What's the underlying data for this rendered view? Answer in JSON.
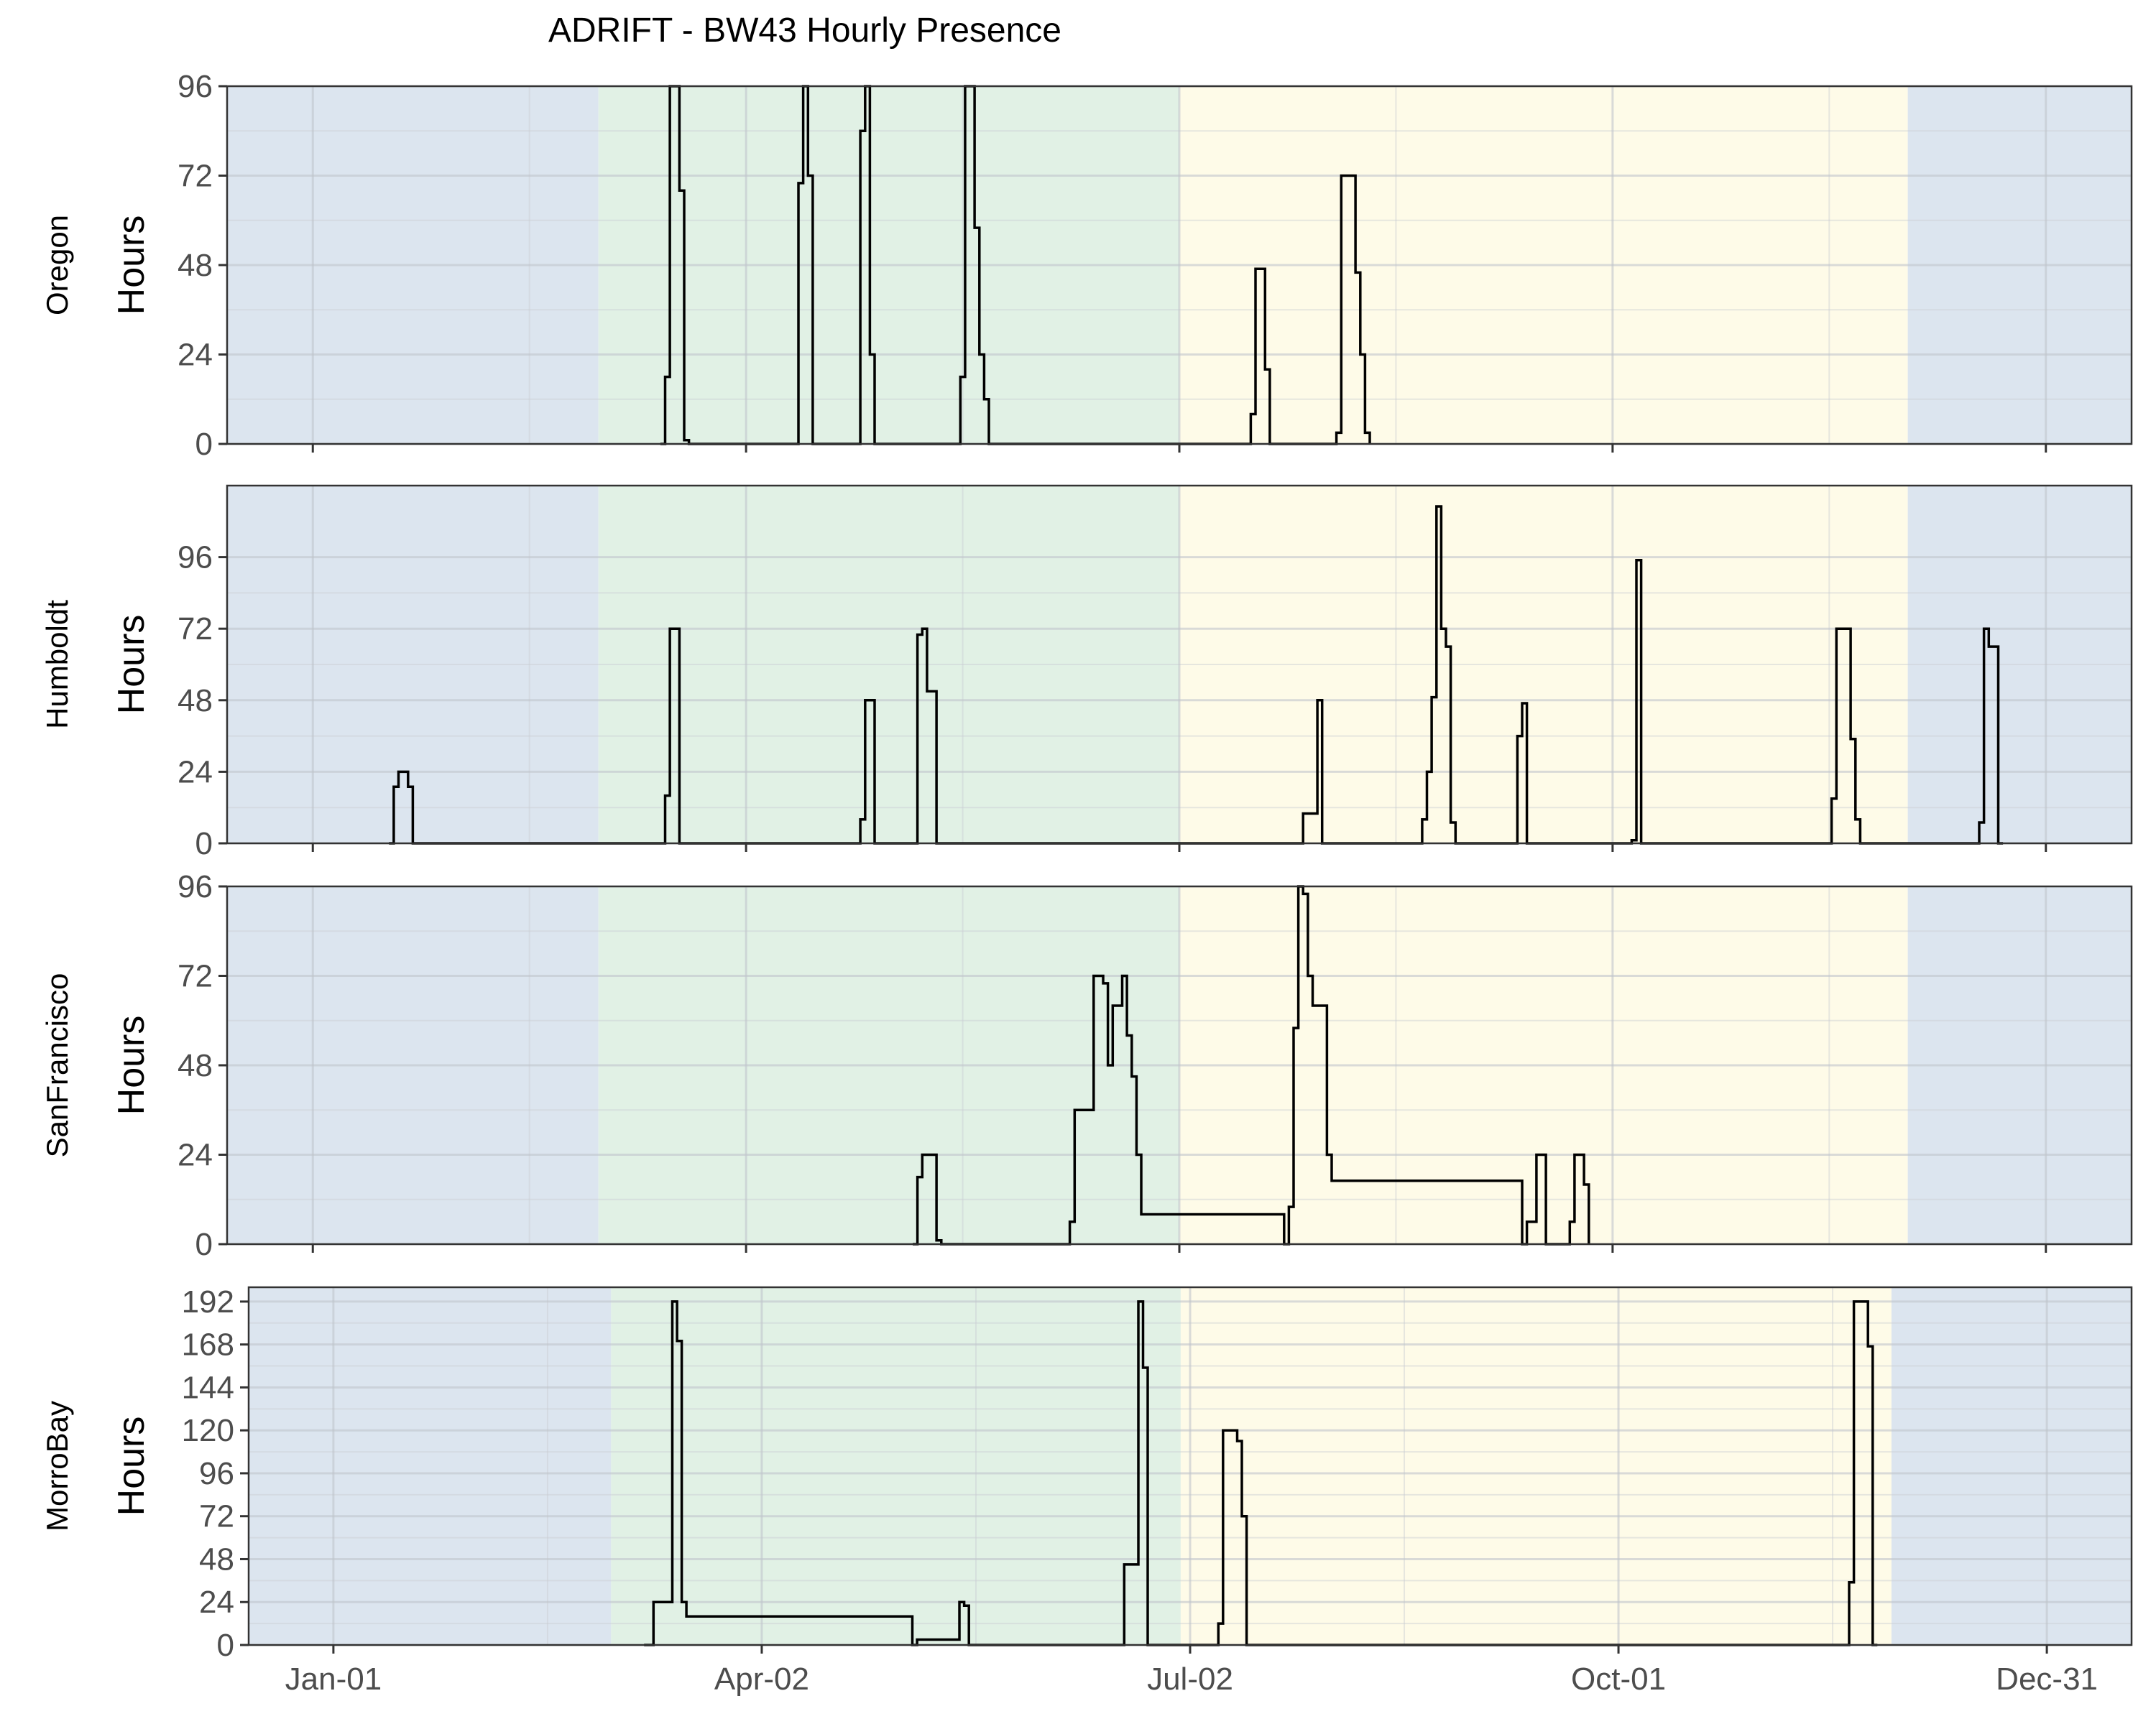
{
  "title": "ADRIFT - BW43 Hourly Presence",
  "colors": {
    "winter": "#dce5ef",
    "upwelling": "#e1f1e5",
    "postupwelling": "#fefbe8",
    "line": "#000000",
    "grid": "#ffffff"
  },
  "chart_data": {
    "type": "step-line",
    "title": "ADRIFT - BW43 Hourly Presence",
    "x_tick_labels": [
      "Jan-01",
      "Apr-02",
      "Jul-02",
      "Oct-01",
      "Dec-31"
    ],
    "x_tick_days": [
      0,
      91,
      182,
      273,
      364
    ],
    "xlim_days": [
      -18,
      382
    ],
    "ylabel": "Hours",
    "panels": [
      {
        "strip": "Oregon",
        "ylim": [
          0,
          96
        ],
        "yticks": [
          0,
          24,
          48,
          72,
          96
        ],
        "seasons": [
          {
            "name": "winter",
            "start": -18,
            "end": 60
          },
          {
            "name": "upwelling",
            "start": 60,
            "end": 182
          },
          {
            "name": "postupwelling",
            "start": 182,
            "end": 335
          },
          {
            "name": "winter",
            "start": 335,
            "end": 382
          }
        ],
        "x_week_start_day": [
          73,
          74,
          75,
          77,
          78,
          79,
          101,
          102,
          103,
          104,
          105,
          114,
          115,
          116,
          117,
          118,
          135,
          136,
          137,
          139,
          140,
          141,
          142,
          196,
          197,
          198,
          200,
          201,
          214,
          215,
          216,
          219,
          220,
          221,
          222
        ],
        "values": [
          0,
          18,
          96,
          68,
          1,
          0,
          0,
          70,
          96,
          72,
          0,
          0,
          84,
          96,
          24,
          0,
          0,
          18,
          96,
          58,
          24,
          12,
          0,
          0,
          8,
          47,
          20,
          0,
          0,
          3,
          72,
          46,
          24,
          3,
          0
        ]
      },
      {
        "strip": "Humboldt",
        "ylim": [
          0,
          120
        ],
        "yticks": [
          0,
          24,
          48,
          72,
          96
        ],
        "seasons": [
          {
            "name": "winter",
            "start": -18,
            "end": 60
          },
          {
            "name": "upwelling",
            "start": 60,
            "end": 182
          },
          {
            "name": "postupwelling",
            "start": 182,
            "end": 335
          },
          {
            "name": "winter",
            "start": 335,
            "end": 382
          }
        ],
        "x_week_start_day": [
          16,
          17,
          18,
          20,
          21,
          73,
          74,
          75,
          77,
          114,
          115,
          116,
          118,
          126,
          127,
          128,
          129,
          131,
          207,
          208,
          211,
          212,
          232,
          233,
          234,
          235,
          236,
          237,
          238,
          239,
          240,
          252,
          253,
          254,
          255,
          276,
          277,
          278,
          279,
          318,
          319,
          320,
          323,
          324,
          325,
          326,
          350,
          351,
          352,
          354,
          355
        ],
        "values": [
          0,
          19,
          24,
          19,
          0,
          0,
          16,
          72,
          0,
          0,
          8,
          48,
          0,
          0,
          70,
          72,
          51,
          0,
          0,
          10,
          48,
          0,
          0,
          8,
          24,
          49,
          113,
          72,
          66,
          7,
          0,
          0,
          36,
          47,
          0,
          0,
          1,
          95,
          0,
          0,
          15,
          72,
          35,
          8,
          0,
          0,
          7,
          72,
          66,
          0,
          0
        ]
      },
      {
        "strip": "SanFrancisco",
        "ylim": [
          0,
          96
        ],
        "yticks": [
          0,
          24,
          48,
          72,
          96
        ],
        "seasons": [
          {
            "name": "winter",
            "start": -18,
            "end": 60
          },
          {
            "name": "upwelling",
            "start": 60,
            "end": 182
          },
          {
            "name": "postupwelling",
            "start": 182,
            "end": 335
          },
          {
            "name": "winter",
            "start": 335,
            "end": 382
          }
        ],
        "x_week_start_day": [
          126,
          127,
          128,
          131,
          132,
          158,
          159,
          160,
          164,
          166,
          167,
          168,
          170,
          171,
          172,
          173,
          174,
          204,
          205,
          206,
          207,
          208,
          209,
          210,
          213,
          214,
          254,
          255,
          257,
          259,
          264,
          265,
          267,
          268
        ],
        "values": [
          0,
          18,
          24,
          1,
          0,
          0,
          6,
          36,
          72,
          70,
          48,
          64,
          72,
          56,
          45,
          24,
          8,
          0,
          10,
          58,
          96,
          94,
          72,
          64,
          24,
          17,
          0,
          6,
          24,
          0,
          6,
          24,
          16,
          0
        ]
      },
      {
        "strip": "MorroBay",
        "ylim": [
          0,
          200
        ],
        "yticks": [
          0,
          24,
          48,
          72,
          96,
          120,
          144,
          168,
          192
        ],
        "seasons": [
          {
            "name": "winter",
            "start": -18,
            "end": 59
          },
          {
            "name": "upwelling",
            "start": 59,
            "end": 180
          },
          {
            "name": "postupwelling",
            "start": 180,
            "end": 331
          },
          {
            "name": "winter",
            "start": 331,
            "end": 382
          }
        ],
        "x_week_start_day": [
          66,
          68,
          72,
          73,
          74,
          75,
          123,
          124,
          133,
          134,
          135,
          167,
          168,
          171,
          172,
          173,
          187,
          188,
          189,
          192,
          193,
          194,
          195,
          322,
          323,
          326,
          327,
          328
        ],
        "values": [
          0,
          24,
          192,
          170,
          24,
          16,
          0,
          3,
          24,
          22,
          0,
          0,
          45,
          192,
          155,
          0,
          0,
          12,
          120,
          114,
          72,
          0,
          0,
          35,
          192,
          167,
          0,
          0
        ]
      }
    ]
  }
}
